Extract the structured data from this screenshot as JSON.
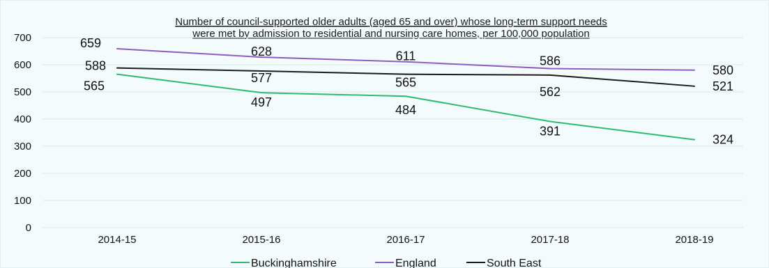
{
  "chart_data": {
    "type": "line",
    "title_lines": [
      "Number of council-supported older adults (aged 65 and over) whose long-term support needs",
      "were met by admission to residential and nursing care homes, per 100,000 population"
    ],
    "categories": [
      "2014-15",
      "2015-16",
      "2016-17",
      "2017-18",
      "2018-19"
    ],
    "ylim": [
      0,
      700
    ],
    "yticks": [
      0,
      100,
      200,
      300,
      400,
      500,
      600,
      700
    ],
    "grid": true,
    "legend_position": "bottom",
    "series": [
      {
        "name": "Buckinghamshire",
        "color": "#2dbb73",
        "values": [
          565,
          497,
          484,
          391,
          324
        ]
      },
      {
        "name": "England",
        "color": "#8f5bc4",
        "values": [
          659,
          628,
          611,
          586,
          580
        ]
      },
      {
        "name": "South East",
        "color": "#1a1a1a",
        "values": [
          588,
          577,
          565,
          562,
          521
        ]
      }
    ]
  }
}
